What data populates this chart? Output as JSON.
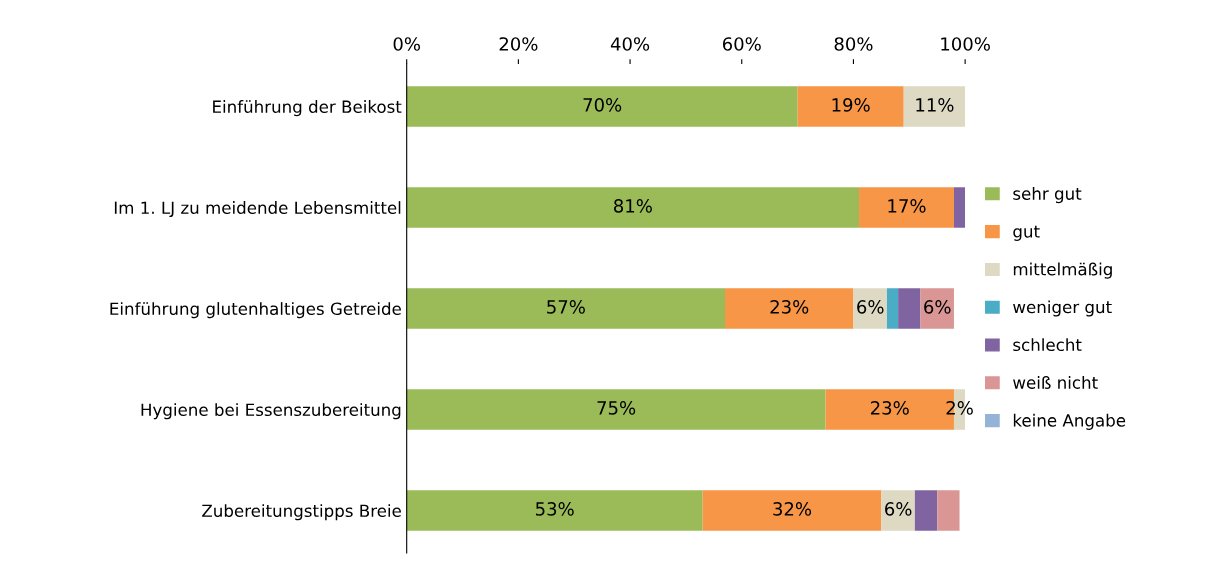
{
  "chart_data": {
    "type": "bar",
    "orientation": "horizontal",
    "stacked": true,
    "legend": "right",
    "grid": false,
    "categories": [
      "Einführung der Beikost",
      "Im 1. LJ zu meidende Lebensmittel",
      "Einführung glutenhaltiges Getreide",
      "Hygiene bei Essenszubereitung",
      "Zubereitungstipps Breie"
    ],
    "xlim": [
      0,
      100
    ],
    "xticks": [
      {
        "value": 0,
        "label": "0%"
      },
      {
        "value": 20,
        "label": "20%"
      },
      {
        "value": 40,
        "label": "40%"
      },
      {
        "value": 60,
        "label": "60%"
      },
      {
        "value": 80,
        "label": "80%"
      },
      {
        "value": 100,
        "label": "100%"
      }
    ],
    "series": [
      {
        "name": "sehr gut",
        "color": "#9bbb59",
        "values": [
          70,
          81,
          57,
          75,
          53
        ],
        "value_labels": [
          "70%",
          "81%",
          "57%",
          "75%",
          "53%"
        ]
      },
      {
        "name": "gut",
        "color": "#f79646",
        "values": [
          19,
          17,
          23,
          23,
          32
        ],
        "value_labels": [
          "19%",
          "17%",
          "23%",
          "23%",
          "32%"
        ]
      },
      {
        "name": "mittelmäßig",
        "color": "#ddd9c3",
        "values": [
          11,
          0,
          6,
          2,
          6
        ],
        "value_labels": [
          "11%",
          null,
          "6%",
          "2%",
          "6%"
        ]
      },
      {
        "name": "weniger gut",
        "color": "#4bacc6",
        "values": [
          0,
          0,
          2,
          0,
          0
        ]
      },
      {
        "name": "schlecht",
        "color": "#8064a2",
        "values": [
          0,
          2,
          4,
          0,
          4
        ]
      },
      {
        "name": "weiß nicht",
        "color": "#d99694",
        "values": [
          0,
          0,
          6,
          0,
          4
        ],
        "value_labels": [
          null,
          null,
          "6%",
          null,
          null
        ]
      },
      {
        "name": "keine Angabe",
        "color": "#95b3d7",
        "values": [
          0,
          0,
          0,
          0,
          0
        ]
      }
    ]
  }
}
